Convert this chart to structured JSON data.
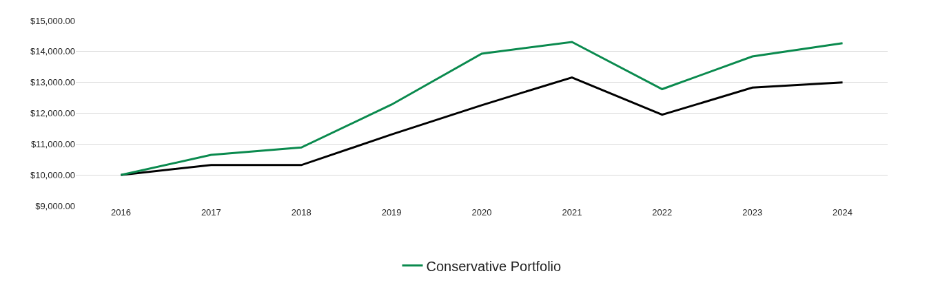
{
  "chart_data": {
    "type": "line",
    "categories": [
      "2016",
      "2017",
      "2018",
      "2019",
      "2020",
      "2021",
      "2022",
      "2023",
      "2024"
    ],
    "series": [
      {
        "color": "#000000",
        "values": [
          10000,
          10320,
          10320,
          11310,
          12260,
          13160,
          11950,
          12830,
          13000
        ]
      },
      {
        "name": "Conservative Portfolio",
        "color": "#0a8a4e",
        "values": [
          10000,
          10650,
          10890,
          12280,
          13930,
          14310,
          12780,
          13840,
          14270
        ]
      }
    ],
    "ylim": [
      9000,
      15000
    ],
    "yticks": [
      {
        "value": 9000,
        "label": "$9,000.00"
      },
      {
        "value": 10000,
        "label": "$10,000.00"
      },
      {
        "value": 11000,
        "label": "$11,000.00"
      },
      {
        "value": 12000,
        "label": "$12,000.00"
      },
      {
        "value": 13000,
        "label": "$13,000.00"
      },
      {
        "value": 14000,
        "label": "$14,000.00"
      },
      {
        "value": 15000,
        "label": "$15,000.00"
      }
    ],
    "grid": "y",
    "legend": "bottom",
    "marker": "none",
    "line_style": "solid"
  }
}
